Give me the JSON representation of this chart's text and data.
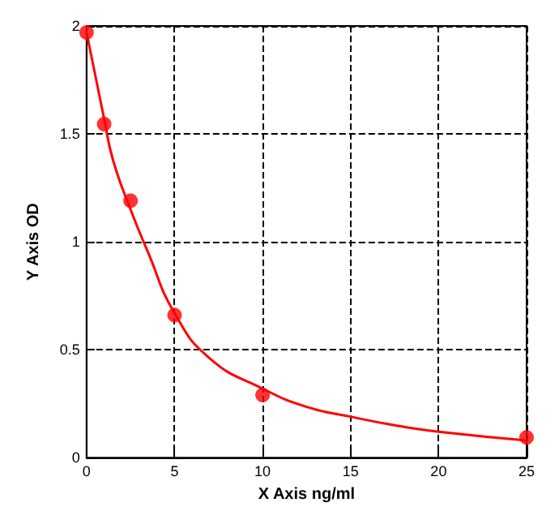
{
  "chart_data": {
    "type": "scatter",
    "xlabel": "X Axis ng/ml",
    "ylabel": "Y Axis OD",
    "xlim": [
      0,
      25
    ],
    "ylim": [
      0,
      2
    ],
    "xticks": [
      0,
      5,
      10,
      15,
      20,
      25
    ],
    "yticks": [
      0,
      0.5,
      1,
      1.5,
      2
    ],
    "grid": true,
    "series": [
      {
        "type": "line",
        "color": "#ff0000",
        "marker": "none",
        "line_style": "solid",
        "x": [
          0,
          0.5,
          1,
          1.5,
          2.5,
          3.5,
          5,
          7,
          10,
          12.5,
          15,
          17.5,
          20,
          25
        ],
        "values": [
          1.97,
          1.77,
          1.57,
          1.38,
          1.15,
          0.95,
          0.67,
          0.46,
          0.32,
          0.235,
          0.19,
          0.15,
          0.12,
          0.08
        ]
      },
      {
        "color": "#ff0000",
        "marker": "circle",
        "x": [
          0,
          1,
          2.5,
          5,
          10,
          25
        ],
        "values": [
          1.97,
          1.545,
          1.19,
          0.66,
          0.29,
          0.094
        ]
      }
    ]
  }
}
